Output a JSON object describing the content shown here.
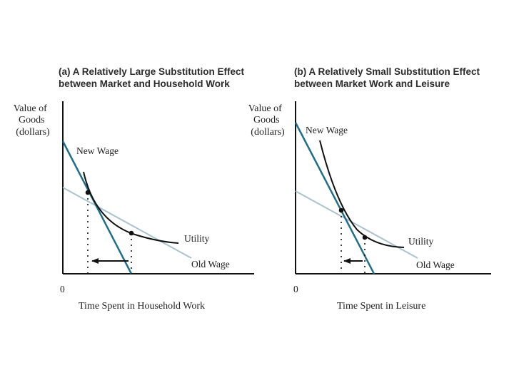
{
  "colors": {
    "new_wage": "#1f6f8b",
    "old_wage": "#a9c3d0",
    "utility": "#111111",
    "axis": "#111111"
  },
  "panel_a": {
    "title_line1": "(a) A Relatively Large Substitution Effect",
    "title_line2": "between Market and Household Work",
    "y_label_line1": "Value of",
    "y_label_line2": "Goods",
    "y_label_line3": "(dollars)",
    "origin_label": "0",
    "x_label": "Time Spent in Household Work",
    "new_wage_label": "New Wage",
    "utility_label": "Utility",
    "old_wage_label": "Old Wage"
  },
  "panel_b": {
    "title_line1": "(b) A Relatively Small Substitution Effect",
    "title_line2": "between Market Work and Leisure",
    "y_label_line1": "Value of",
    "y_label_line2": "Goods",
    "y_label_line3": "(dollars)",
    "origin_label": "0",
    "x_label": "Time Spent in Leisure",
    "new_wage_label": "New Wage",
    "utility_label": "Utility",
    "old_wage_label": "Old Wage"
  }
}
